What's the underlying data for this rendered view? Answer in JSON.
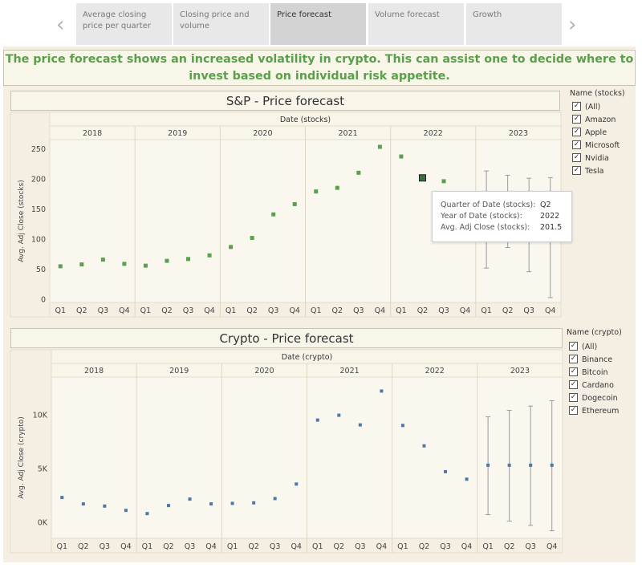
{
  "nav": {
    "prev_icon": "chevron-left-icon",
    "next_icon": "chevron-right-icon",
    "prev_glyph": "‹",
    "next_glyph": "›"
  },
  "tabs": [
    {
      "label": "Average closing price per quarter",
      "active": false
    },
    {
      "label": "Closing price and volume",
      "active": false
    },
    {
      "label": "Price forecast",
      "active": true
    },
    {
      "label": "Volume forecast",
      "active": false
    },
    {
      "label": "Growth",
      "active": false
    }
  ],
  "headline": "The price forecast shows an increased volatility in crypto. This can assist one to decide where to invest based on individual risk appetite.",
  "colors": {
    "headline": "#5aa04b",
    "stocks_mark": "#59a14f",
    "crypto_mark": "#4e79a7",
    "error_bar": "#9a9a9a",
    "panel_bg": "#f4efe2",
    "plot_bg": "#faf7ef"
  },
  "stocks_legend": {
    "title": "Name (stocks)",
    "items": [
      {
        "label": "(All)",
        "checked": true
      },
      {
        "label": "Amazon",
        "checked": true
      },
      {
        "label": "Apple",
        "checked": true
      },
      {
        "label": "Microsoft",
        "checked": true
      },
      {
        "label": "Nvidia",
        "checked": true
      },
      {
        "label": "Tesla",
        "checked": true
      }
    ]
  },
  "crypto_legend": {
    "title": "Name (crypto)",
    "items": [
      {
        "label": "(All)",
        "checked": true
      },
      {
        "label": "Binance",
        "checked": true
      },
      {
        "label": "Bitcoin",
        "checked": true
      },
      {
        "label": "Cardano",
        "checked": true
      },
      {
        "label": "Dogecoin",
        "checked": true
      },
      {
        "label": "Ethereum",
        "checked": true
      }
    ]
  },
  "tooltip": {
    "rows": [
      {
        "label": "Quarter of Date (stocks):",
        "value": "Q2"
      },
      {
        "label": "Year of Date (stocks):",
        "value": "2022"
      },
      {
        "label": "Avg. Adj Close (stocks):",
        "value": "201.5"
      }
    ]
  },
  "chart_data": [
    {
      "type": "scatter",
      "title": "S&P - Price forecast",
      "xlabel": "Date (stocks)",
      "ylabel": "Avg. Adj Close (stocks)",
      "years": [
        "2018",
        "2019",
        "2020",
        "2021",
        "2022",
        "2023"
      ],
      "quarters": [
        "Q1",
        "Q2",
        "Q3",
        "Q4"
      ],
      "ylim": [
        -5,
        265
      ],
      "yticks": [
        0,
        50,
        100,
        150,
        200,
        250
      ],
      "ytick_labels": [
        "0",
        "50",
        "100",
        "150",
        "200",
        "250"
      ],
      "grid": false,
      "legend_position": "right",
      "values": [
        55,
        58,
        66,
        59,
        56,
        64,
        67,
        73,
        87,
        102,
        141,
        158,
        179,
        185,
        210,
        253,
        237,
        201.5,
        196,
        null
      ],
      "highlight_index": 17,
      "forecast": [
        {
          "x_index": 20,
          "value": 138,
          "low": 52,
          "high": 213
        },
        {
          "x_index": 21,
          "value": 138,
          "low": 86,
          "high": 206
        },
        {
          "x_index": 22,
          "value": 138,
          "low": 46,
          "high": 201
        },
        {
          "x_index": 23,
          "value": 138,
          "low": 3,
          "high": 202
        }
      ]
    },
    {
      "type": "scatter",
      "title": "Crypto - Price forecast",
      "xlabel": "Date (crypto)",
      "ylabel": "Avg. Adj Close (crypto)",
      "years": [
        "2018",
        "2019",
        "2020",
        "2021",
        "2022",
        "2023"
      ],
      "quarters": [
        "Q1",
        "Q2",
        "Q3",
        "Q4"
      ],
      "ylim": [
        -1500,
        13500
      ],
      "yticks": [
        0,
        5000,
        10000
      ],
      "ytick_labels": [
        "0K",
        "5K",
        "10K"
      ],
      "grid": false,
      "legend_position": "right",
      "values": [
        2300,
        1700,
        1500,
        1100,
        800,
        1550,
        2150,
        1700,
        1750,
        1800,
        2200,
        3550,
        9500,
        9950,
        9050,
        12200,
        9000,
        7100,
        4700,
        4000
      ],
      "forecast": [
        {
          "x_index": 20,
          "value": 5300,
          "low": 700,
          "high": 9800
        },
        {
          "x_index": 21,
          "value": 5300,
          "low": 100,
          "high": 10400
        },
        {
          "x_index": 22,
          "value": 5300,
          "low": -300,
          "high": 10800
        },
        {
          "x_index": 23,
          "value": 5300,
          "low": -800,
          "high": 11300
        }
      ]
    }
  ]
}
